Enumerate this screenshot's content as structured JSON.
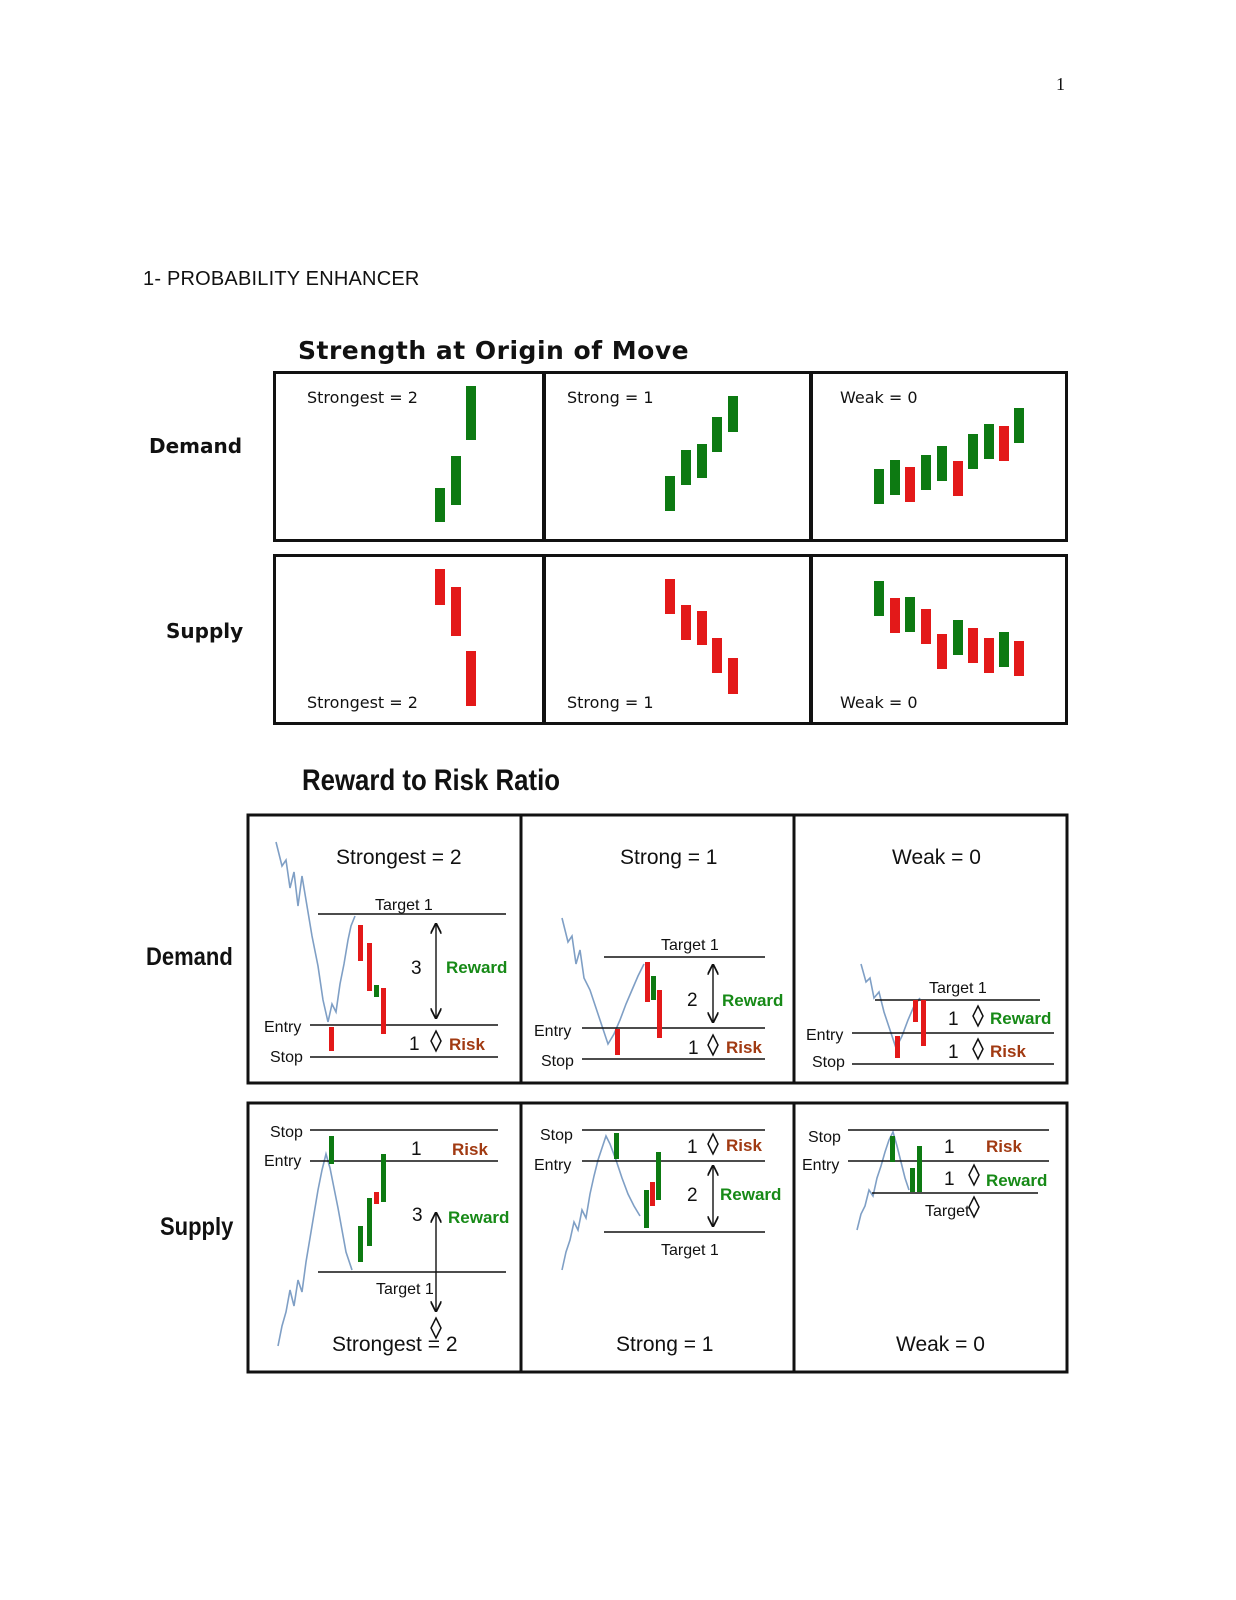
{
  "page_number": "1",
  "heading": "1- PROBABILITY ENHANCER",
  "figure1": {
    "title": "Strength at Origin of Move",
    "rows": {
      "demand": "Demand",
      "supply": "Supply"
    },
    "demand": [
      "Strongest = 2",
      "Strong = 1",
      "Weak = 0"
    ],
    "supply": [
      "Strongest = 2",
      "Strong = 1",
      "Weak = 0"
    ]
  },
  "figure2": {
    "title": "Reward to Risk Ratio",
    "rows": {
      "demand": "Demand",
      "supply": "Supply"
    },
    "terms": {
      "target": "Target 1",
      "entry": "Entry",
      "stop": "Stop",
      "reward": "Reward",
      "risk": "Risk",
      "target_short": "Target"
    },
    "demand": [
      {
        "label": "Strongest = 2",
        "reward_value": "3",
        "risk_value": "1"
      },
      {
        "label": "Strong = 1",
        "reward_value": "2",
        "risk_value": "1"
      },
      {
        "label": "Weak = 0",
        "reward_value": "1",
        "risk_value": "1"
      }
    ],
    "supply": [
      {
        "label": "Strongest = 2",
        "reward_value": "3",
        "risk_value": "1"
      },
      {
        "label": "Strong = 1",
        "reward_value": "2",
        "risk_value": "1"
      },
      {
        "label": "Weak = 0",
        "reward_value": "1",
        "risk_value": "1"
      }
    ]
  },
  "colors": {
    "bull": "#0d7a12",
    "bear": "#e31919",
    "price_line": "#7f9fc5",
    "reward": "#178a17",
    "risk": "#a13a12"
  }
}
